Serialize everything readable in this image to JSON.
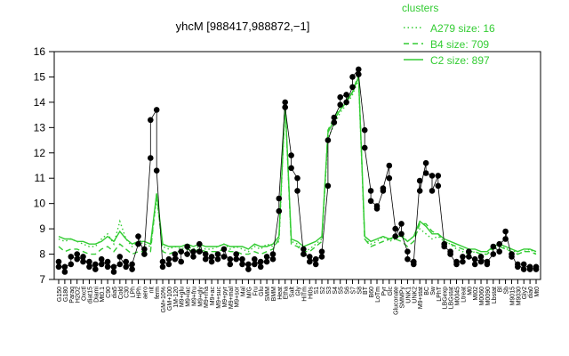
{
  "chart_data": {
    "type": "line",
    "title": "yhcM [988417,988872,−1]",
    "xlabel": "",
    "ylabel": "",
    "ylim": [
      7,
      16
    ],
    "yticks": [
      7,
      8,
      9,
      10,
      11,
      12,
      13,
      14,
      15,
      16
    ],
    "grid": false,
    "legend": {
      "title": "clusters",
      "placement": "top-right",
      "entries": [
        {
          "label": "A279 size: 16",
          "style": "dotted",
          "color": "#33cc33"
        },
        {
          "label": "B4 size: 709",
          "style": "dashed",
          "color": "#33cc33"
        },
        {
          "label": "C2 size: 897",
          "style": "solid",
          "color": "#33cc33"
        }
      ]
    },
    "x_tick_labels": [
      "G150",
      "G180",
      "Paraq",
      "H2O2",
      "Oxctl",
      "diat15",
      "Diami",
      "Mt0.1",
      "C90",
      "dia5",
      "Cold",
      "C30",
      "LPh",
      "HPh",
      "aero",
      "nit",
      "ferm",
      "GM+10%",
      "GM+100",
      "1M-120",
      "M9+glu",
      "M9+lac",
      "M9+fru",
      "M9+gly",
      "M9+rha",
      "M9+ac",
      "M9+suc",
      "M9+pyr",
      "M9+mal",
      "M9+sor",
      "Mal",
      "M/G",
      "Fru",
      "Glu",
      "SMM",
      "BMM",
      "Heat",
      "Etha",
      "Salt",
      "Gly",
      "HiTm",
      "Hi0s",
      "S1",
      "S2",
      "S3",
      "S4",
      "S5",
      "S6",
      "S7",
      "S8",
      "BT",
      "B60",
      "LoTm",
      "Pyr",
      "Glc",
      "Gluconate",
      "SMMPy",
      "UNK1",
      "UNK2",
      "M9+stat",
      "BC",
      "Sw",
      "LPhT",
      "LBGexp",
      "LBGstat",
      "M0045",
      "Ltreat",
      "M0",
      "MI02",
      "M0060",
      "M0090",
      "Lbstat",
      "Bl",
      "Sb",
      "M9015",
      "M9030",
      "Gly2",
      "dia0",
      "Mt0"
    ],
    "series": [
      {
        "name": "A279 size: 16",
        "style": "dotted",
        "values": [
          8.6,
          8.5,
          8.6,
          8.5,
          8.4,
          8.3,
          8.3,
          8.6,
          8.8,
          8.4,
          9.3,
          8.6,
          8.3,
          8.5,
          8.4,
          8.3,
          10.2,
          8.3,
          8.2,
          8.3,
          8.2,
          8.3,
          8.2,
          8.3,
          8.2,
          8.2,
          8.3,
          8.4,
          8.2,
          8.3,
          8.2,
          8.1,
          8.3,
          8.2,
          8.4,
          8.3,
          8.5,
          13.9,
          8.5,
          8.4,
          8.1,
          8.2,
          8.4,
          8.6,
          12.6,
          13.1,
          13.6,
          13.9,
          14.3,
          14.9,
          8.6,
          8.4,
          8.5,
          8.7,
          8.5,
          8.6,
          8.8,
          8.5,
          8.7,
          9.0,
          8.8,
          8.6,
          8.7,
          8.5,
          8.4,
          8.2,
          8.1,
          8.0,
          8.1,
          8.0,
          8.0,
          8.3,
          8.4,
          8.2,
          8.2,
          8.0,
          8.1,
          8.2,
          8.0
        ]
      },
      {
        "name": "B4 size: 709",
        "style": "dashed",
        "values": [
          8.3,
          8.1,
          8.2,
          8.2,
          8.1,
          8.0,
          8.0,
          8.2,
          8.3,
          8.1,
          8.4,
          8.2,
          8.0,
          8.1,
          8.1,
          8.1,
          10.4,
          8.1,
          8.0,
          8.1,
          8.1,
          8.2,
          8.1,
          8.2,
          8.1,
          8.1,
          8.1,
          8.2,
          8.1,
          8.1,
          8.0,
          8.0,
          8.1,
          8.0,
          8.1,
          8.2,
          8.6,
          14.1,
          8.4,
          8.3,
          8.1,
          8.1,
          8.3,
          8.5,
          12.9,
          13.4,
          13.8,
          14.1,
          14.4,
          15.1,
          8.6,
          8.3,
          8.4,
          8.5,
          8.6,
          8.6,
          8.5,
          8.3,
          8.5,
          9.2,
          9.2,
          8.9,
          8.8,
          8.5,
          8.4,
          8.3,
          8.2,
          8.1,
          8.1,
          8.0,
          8.0,
          8.2,
          8.3,
          8.2,
          8.1,
          8.0,
          8.1,
          8.1,
          8.0
        ]
      },
      {
        "name": "C2 size: 897",
        "style": "solid",
        "values": [
          8.7,
          8.6,
          8.6,
          8.5,
          8.5,
          8.4,
          8.4,
          8.5,
          8.7,
          8.5,
          8.9,
          8.6,
          8.4,
          8.5,
          8.5,
          8.4,
          10.4,
          8.4,
          8.3,
          8.3,
          8.3,
          8.4,
          8.3,
          8.4,
          8.3,
          8.3,
          8.3,
          8.4,
          8.3,
          8.3,
          8.3,
          8.2,
          8.4,
          8.3,
          8.3,
          8.4,
          8.7,
          14.0,
          8.6,
          8.5,
          8.3,
          8.4,
          8.5,
          8.7,
          12.8,
          13.3,
          13.7,
          14.0,
          14.4,
          15.0,
          8.7,
          8.5,
          8.6,
          8.7,
          8.6,
          8.7,
          8.7,
          8.5,
          8.7,
          9.3,
          9.1,
          8.8,
          8.8,
          8.6,
          8.5,
          8.4,
          8.3,
          8.2,
          8.2,
          8.1,
          8.1,
          8.3,
          8.4,
          8.3,
          8.2,
          8.1,
          8.2,
          8.2,
          8.1
        ]
      }
    ],
    "point_columns": [
      [
        7.5,
        7.7
      ],
      [
        7.3,
        7.5
      ],
      [
        7.6,
        7.9
      ],
      [
        7.8,
        8.0
      ],
      [
        7.7,
        7.9
      ],
      [
        7.5,
        7.7
      ],
      [
        7.4,
        7.6
      ],
      [
        7.6,
        7.8
      ],
      [
        7.5,
        7.7
      ],
      [
        7.3,
        7.5
      ],
      [
        7.6,
        7.9
      ],
      [
        7.5,
        7.7
      ],
      [
        7.4,
        7.6
      ],
      [
        8.4,
        8.7
      ],
      [
        8.0,
        8.2
      ],
      [
        11.8,
        13.3
      ],
      [
        13.7,
        11.3
      ],
      [
        7.5,
        7.7
      ],
      [
        7.6,
        7.8
      ],
      [
        7.8,
        8.0
      ],
      [
        7.7,
        8.1
      ],
      [
        8.0,
        8.3
      ],
      [
        7.9,
        8.1
      ],
      [
        8.1,
        8.4
      ],
      [
        7.8,
        8.0
      ],
      [
        7.7,
        7.9
      ],
      [
        7.8,
        8.0
      ],
      [
        7.9,
        8.2
      ],
      [
        7.6,
        7.8
      ],
      [
        7.8,
        8.0
      ],
      [
        7.6,
        7.8
      ],
      [
        7.4,
        7.6
      ],
      [
        7.6,
        7.8
      ],
      [
        7.5,
        7.7
      ],
      [
        7.7,
        7.9
      ],
      [
        7.8,
        8.0
      ],
      [
        9.7,
        10.2
      ],
      [
        14.0,
        13.8
      ],
      [
        11.9,
        11.4
      ],
      [
        11.0,
        10.5
      ],
      [
        8.0,
        8.2
      ],
      [
        7.7,
        7.9
      ],
      [
        7.6,
        7.8
      ],
      [
        7.9,
        8.1
      ],
      [
        10.7,
        12.5
      ],
      [
        13.2,
        13.4
      ],
      [
        13.9,
        14.2
      ],
      [
        14.3,
        14.0
      ],
      [
        14.6,
        15.0
      ],
      [
        15.3,
        15.1
      ],
      [
        12.9,
        12.2
      ],
      [
        10.5,
        10.1
      ],
      [
        9.9,
        9.8
      ],
      [
        10.5,
        10.6
      ],
      [
        11.5,
        11.0
      ],
      [
        9.0,
        8.7
      ],
      [
        9.2,
        8.8
      ],
      [
        8.1,
        7.8
      ],
      [
        7.6,
        7.7
      ],
      [
        10.9,
        10.5
      ],
      [
        11.6,
        11.2
      ],
      [
        11.1,
        10.5
      ],
      [
        11.1,
        10.7
      ],
      [
        8.4,
        8.3
      ],
      [
        8.1,
        8.0
      ],
      [
        7.6,
        7.7
      ],
      [
        7.7,
        7.9
      ],
      [
        7.9,
        8.1
      ],
      [
        7.6,
        7.8
      ],
      [
        7.7,
        7.9
      ],
      [
        7.6,
        7.7
      ],
      [
        8.0,
        8.3
      ],
      [
        8.1,
        8.4
      ],
      [
        8.6,
        8.9
      ],
      [
        7.9,
        8.0
      ],
      [
        7.5,
        7.6
      ],
      [
        7.4,
        7.6
      ],
      [
        7.4,
        7.5
      ],
      [
        7.4,
        7.5
      ]
    ]
  }
}
